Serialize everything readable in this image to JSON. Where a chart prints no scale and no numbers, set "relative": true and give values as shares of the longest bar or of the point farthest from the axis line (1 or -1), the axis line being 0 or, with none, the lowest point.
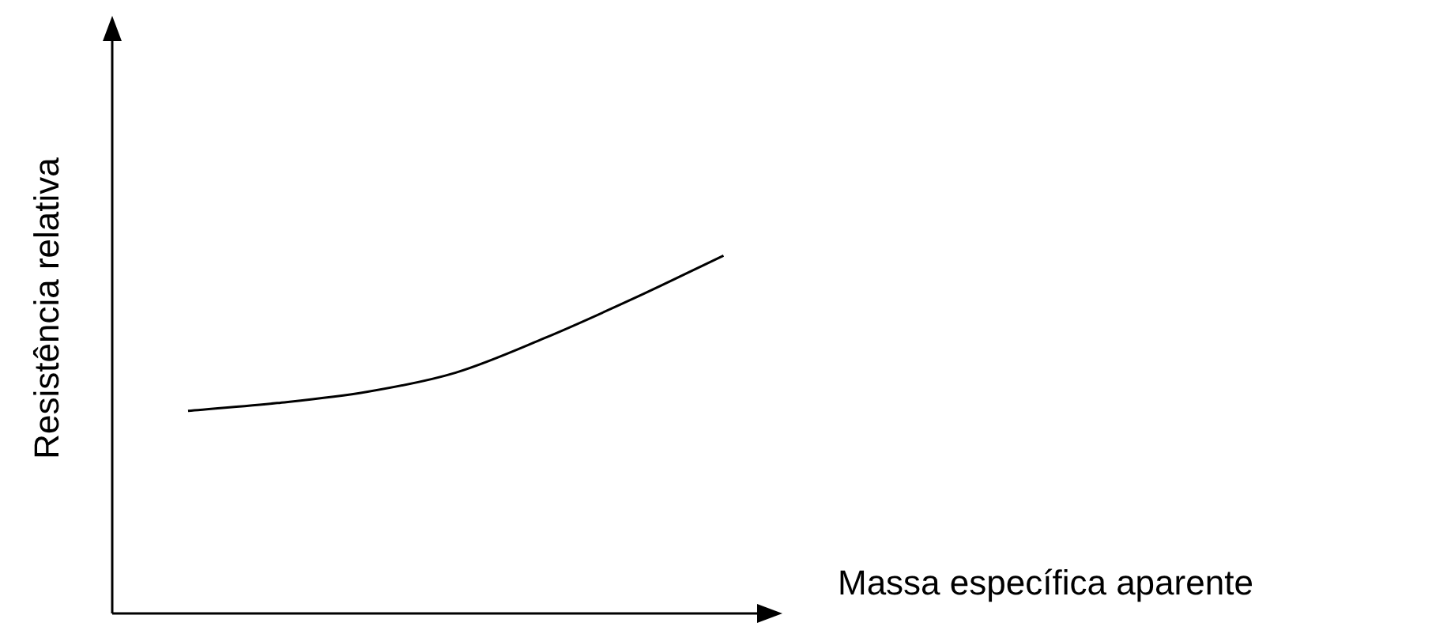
{
  "chart_data": {
    "type": "line",
    "relative": true,
    "xlabel": "Massa específica aparente",
    "ylabel": "Resistência relativa",
    "categories": [
      null,
      null,
      null,
      null,
      null,
      null,
      null
    ],
    "series": [
      {
        "color": "#000000",
        "values": [
          0.566,
          0.588,
          0.619,
          0.673,
          0.77,
          0.881,
          1
        ]
      }
    ]
  }
}
